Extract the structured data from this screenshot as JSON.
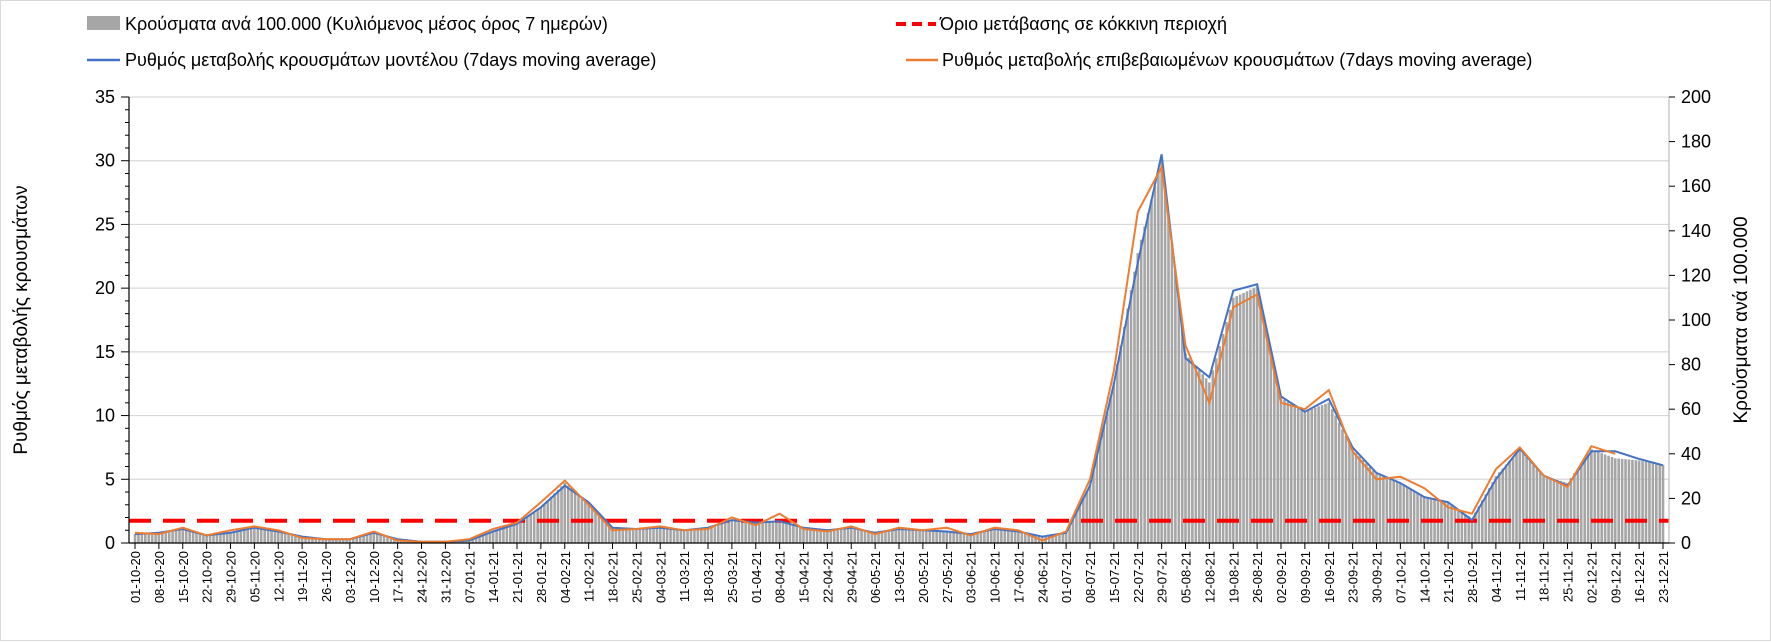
{
  "chart_data": {
    "type": "bar+line",
    "legend": {
      "bars": "Κρούσματα ανά 100.000 (Κυλιόμενος μέσος όρος 7 ημερών)",
      "threshold": "Όριο μετάβασης σε κόκκινη περιοχή",
      "model": "Ρυθμός μεταβολής κρουσμάτων μοντέλου (7days moving average)",
      "confirmed": "Ρυθμός μεταβολής επιβεβαιωμένων κρουσμάτων (7days moving average)"
    },
    "legend_placement": "top",
    "ylabel_left": "Ρυθμός μεταβολής κρουσμάτων",
    "ylabel_right": "Κρούσματα ανά 100.000",
    "ylim_left": [
      0,
      35
    ],
    "yticks_left": [
      "0",
      "5",
      "10",
      "15",
      "20",
      "25",
      "30",
      "35"
    ],
    "ylim_right": [
      0,
      200
    ],
    "yticks_right": [
      "0",
      "20",
      "40",
      "60",
      "80",
      "100",
      "120",
      "140",
      "160",
      "180",
      "200"
    ],
    "grid": true,
    "threshold_right": 10,
    "colors": {
      "bars": "#a6a6a6",
      "threshold": "#ff0000",
      "model": "#4472c4",
      "confirmed": "#ed7d31"
    },
    "x": [
      "01-10-20",
      "08-10-20",
      "15-10-20",
      "22-10-20",
      "29-10-20",
      "05-11-20",
      "12-11-20",
      "19-11-20",
      "26-11-20",
      "03-12-20",
      "10-12-20",
      "17-12-20",
      "24-12-20",
      "31-12-20",
      "07-01-21",
      "14-01-21",
      "21-01-21",
      "28-01-21",
      "04-02-21",
      "11-02-21",
      "18-02-21",
      "25-02-21",
      "04-03-21",
      "11-03-21",
      "18-03-21",
      "25-03-21",
      "01-04-21",
      "08-04-21",
      "15-04-21",
      "22-04-21",
      "29-04-21",
      "06-05-21",
      "13-05-21",
      "20-05-21",
      "27-05-21",
      "03-06-21",
      "10-06-21",
      "17-06-21",
      "24-06-21",
      "01-07-21",
      "08-07-21",
      "15-07-21",
      "22-07-21",
      "29-07-21",
      "05-08-21",
      "12-08-21",
      "19-08-21",
      "26-08-21",
      "02-09-21",
      "09-09-21",
      "16-09-21",
      "23-09-21",
      "30-09-21",
      "07-10-21",
      "14-10-21",
      "21-10-21",
      "28-10-21",
      "04-11-21",
      "11-11-21",
      "18-11-21",
      "25-11-21",
      "02-12-21",
      "09-12-21",
      "16-12-21",
      "23-12-21"
    ],
    "bars": [
      4,
      5,
      6,
      4,
      5,
      7,
      5,
      3,
      2,
      2,
      5,
      2,
      1,
      1,
      1,
      5,
      9,
      16,
      27,
      18,
      7,
      6,
      7,
      6,
      7,
      10,
      9,
      10,
      7,
      6,
      7,
      5,
      6,
      6,
      5,
      4,
      6,
      5,
      3,
      5,
      26,
      72,
      130,
      172,
      85,
      72,
      110,
      115,
      65,
      59,
      63,
      42,
      31,
      27,
      21,
      18,
      11,
      30,
      42,
      30,
      27,
      42,
      38,
      37,
      35
    ],
    "model": [
      0.7,
      0.8,
      1.1,
      0.6,
      0.8,
      1.2,
      0.9,
      0.5,
      0.3,
      0.3,
      0.8,
      0.3,
      0.1,
      0.1,
      0.2,
      0.9,
      1.5,
      2.8,
      4.5,
      3.2,
      1.2,
      1.1,
      1.2,
      1.0,
      1.2,
      1.8,
      1.6,
      1.7,
      1.2,
      1.0,
      1.2,
      0.8,
      1.1,
      1.0,
      0.9,
      0.7,
      1.1,
      0.9,
      0.5,
      0.8,
      4.5,
      12.5,
      22,
      30.5,
      14.5,
      13,
      19.8,
      20.3,
      11.5,
      10.3,
      11.3,
      7.5,
      5.5,
      4.7,
      3.6,
      3.2,
      1.8,
      5.0,
      7.4,
      5.3,
      4.5,
      7.2,
      7.2,
      6.6,
      6.1
    ],
    "confirmed": [
      0.8,
      0.7,
      1.2,
      0.6,
      1.0,
      1.3,
      1.0,
      0.4,
      0.3,
      0.3,
      0.9,
      0.2,
      0.1,
      0.1,
      0.3,
      1.1,
      1.6,
      3.2,
      4.9,
      3.0,
      1.0,
      1.1,
      1.3,
      1.0,
      1.1,
      2.0,
      1.4,
      2.3,
      1.1,
      0.9,
      1.3,
      0.7,
      1.2,
      1.0,
      1.2,
      0.6,
      1.2,
      1.0,
      0.2,
      0.9,
      5.0,
      13.5,
      26,
      29.5,
      15.5,
      11,
      18.5,
      19.5,
      11,
      10.5,
      12,
      7.2,
      5.0,
      5.2,
      4.3,
      2.8,
      2.3,
      5.8,
      7.5,
      5.3,
      4.4,
      7.6,
      7.0,
      null,
      null
    ]
  }
}
